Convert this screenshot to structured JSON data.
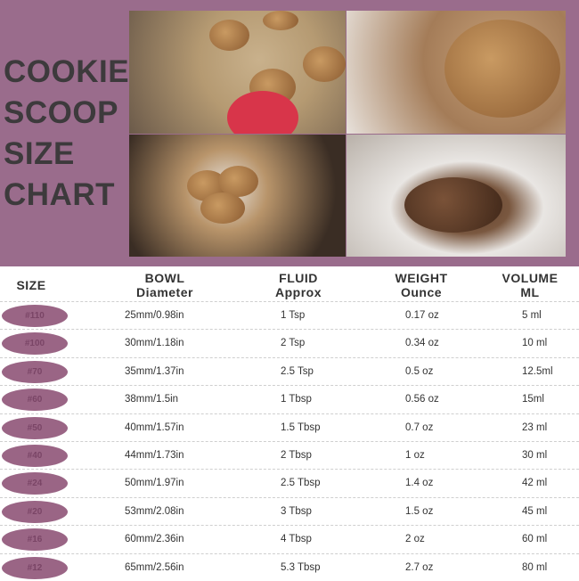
{
  "title": [
    "COOKIE",
    "SCOOP",
    "SIZE",
    "CHART"
  ],
  "colors": {
    "banner": "#9a6c8c",
    "pill": "#9a6585"
  },
  "headers": {
    "size": "SIZE",
    "bowl": [
      "BOWL",
      "Diameter"
    ],
    "fluid": [
      "FLUID",
      "Approx"
    ],
    "weight": [
      "WEIGHT",
      "Ounce"
    ],
    "volume": [
      "VOLUME",
      "ML"
    ]
  },
  "rows": [
    {
      "size": "#110",
      "bowl": "25mm/0.98in",
      "fluid": "1 Tsp",
      "weight": "0.17 oz",
      "volume": "5 ml"
    },
    {
      "size": "#100",
      "bowl": "30mm/1.18in",
      "fluid": "2 Tsp",
      "weight": "0.34 oz",
      "volume": "10 ml"
    },
    {
      "size": "#70",
      "bowl": "35mm/1.37in",
      "fluid": "2.5 Tsp",
      "weight": "0.5 oz",
      "volume": "12.5ml"
    },
    {
      "size": "#60",
      "bowl": "38mm/1.5in",
      "fluid": "1 Tbsp",
      "weight": "0.56 oz",
      "volume": "15ml"
    },
    {
      "size": "#50",
      "bowl": "40mm/1.57in",
      "fluid": "1.5 Tbsp",
      "weight": "0.7 oz",
      "volume": "23 ml"
    },
    {
      "size": "#40",
      "bowl": "44mm/1.73in",
      "fluid": "2 Tbsp",
      "weight": "1 oz",
      "volume": "30 ml"
    },
    {
      "size": "#24",
      "bowl": "50mm/1.97in",
      "fluid": "2.5 Tbsp",
      "weight": "1.4 oz",
      "volume": "42 ml"
    },
    {
      "size": "#20",
      "bowl": "53mm/2.08in",
      "fluid": "3 Tbsp",
      "weight": "1.5 oz",
      "volume": "45 ml"
    },
    {
      "size": "#16",
      "bowl": "60mm/2.36in",
      "fluid": "4 Tbsp",
      "weight": "2 oz",
      "volume": "60 ml"
    },
    {
      "size": "#12",
      "bowl": "65mm/2.56in",
      "fluid": "5.3 Tbsp",
      "weight": "2.7 oz",
      "volume": "80 ml"
    }
  ]
}
